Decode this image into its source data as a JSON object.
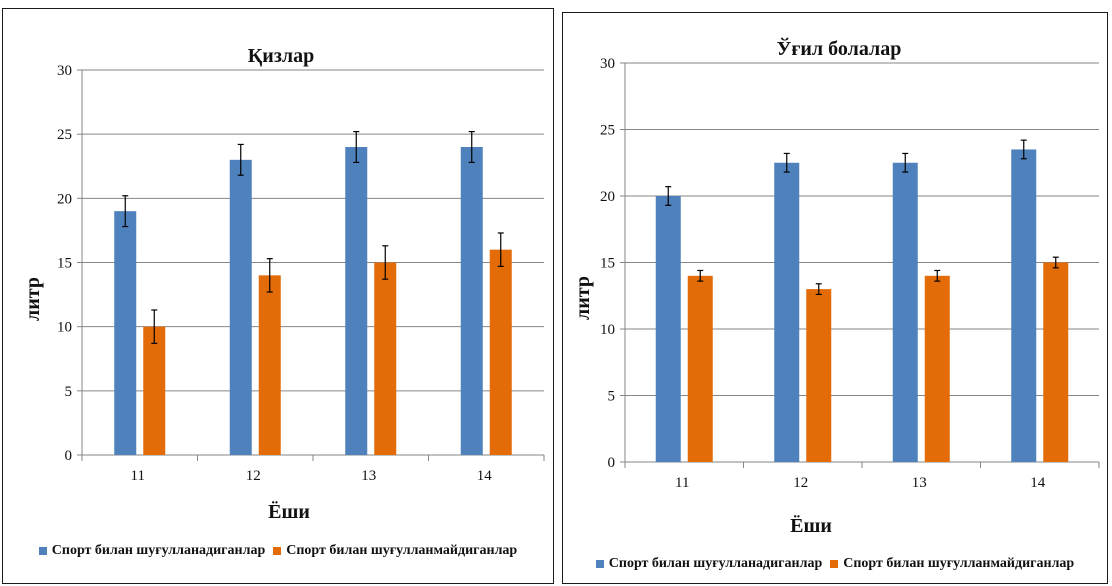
{
  "colors": {
    "series1": "#4f81bd",
    "series2": "#e36c09",
    "axis": "#868686",
    "grid": "#868686",
    "errorbar": "#000000"
  },
  "chart_data": [
    {
      "type": "bar",
      "title": "Қизлар",
      "xlabel": "Ёши",
      "ylabel": "литр",
      "categories": [
        "11",
        "12",
        "13",
        "14"
      ],
      "ylim": [
        0,
        30
      ],
      "yticks": [
        "0",
        "5",
        "10",
        "15",
        "20",
        "25",
        "30"
      ],
      "grid": true,
      "legend_position": "bottom",
      "series": [
        {
          "name": "Спорт билан шуғулланадиганлар",
          "values": [
            19,
            23,
            24,
            24
          ],
          "errors": [
            1.2,
            1.2,
            1.2,
            1.2
          ]
        },
        {
          "name": "Спорт билан шуғулланмайдиганлар",
          "values": [
            10,
            14,
            15,
            16
          ],
          "errors": [
            1.3,
            1.3,
            1.3,
            1.3
          ]
        }
      ]
    },
    {
      "type": "bar",
      "title": "Ўғил болалар",
      "xlabel": "Ёши",
      "ylabel": "литр",
      "categories": [
        "11",
        "12",
        "13",
        "14"
      ],
      "ylim": [
        0,
        30
      ],
      "yticks": [
        "0",
        "5",
        "10",
        "15",
        "20",
        "25",
        "30"
      ],
      "grid": true,
      "legend_position": "bottom",
      "series": [
        {
          "name": "Спорт билан шуғулланадиганлар",
          "values": [
            20,
            22.5,
            22.5,
            23.5
          ],
          "errors": [
            0.7,
            0.7,
            0.7,
            0.7
          ]
        },
        {
          "name": "Спорт билан шуғулланмайдиганлар",
          "values": [
            14,
            13,
            14,
            15
          ],
          "errors": [
            0.4,
            0.4,
            0.4,
            0.4
          ]
        }
      ]
    }
  ]
}
